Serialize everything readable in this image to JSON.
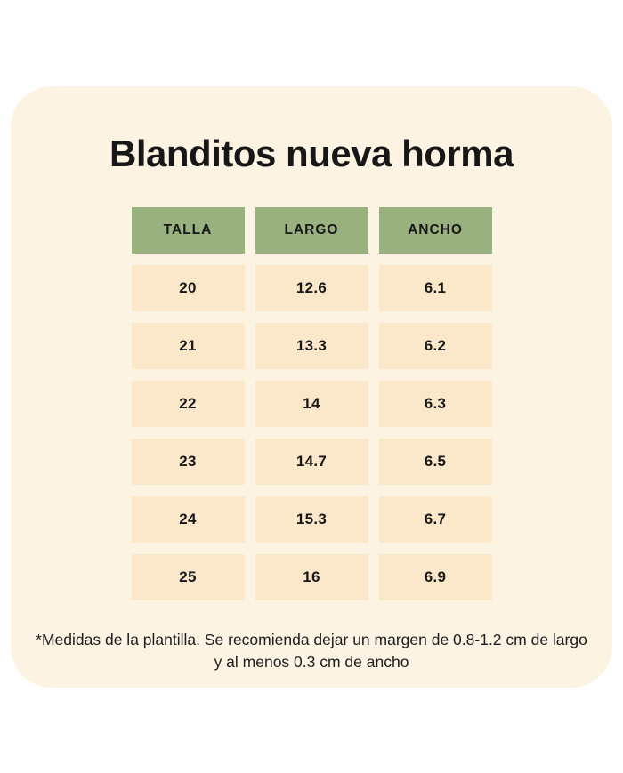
{
  "title": "Blanditos nueva horma",
  "table": {
    "headers": [
      "TALLA",
      "LARGO",
      "ANCHO"
    ],
    "rows": [
      [
        "20",
        "12.6",
        "6.1"
      ],
      [
        "21",
        "13.3",
        "6.2"
      ],
      [
        "22",
        "14",
        "6.3"
      ],
      [
        "23",
        "14.7",
        "6.5"
      ],
      [
        "24",
        "15.3",
        "6.7"
      ],
      [
        "25",
        "16",
        "6.9"
      ]
    ]
  },
  "footnote": "*Medidas de la plantilla. Se recomienda dejar un margen de 0.8-1.2 cm de largo y al menos 0.3 cm de ancho",
  "colors": {
    "page_background": "#ffffff",
    "card_background": "#fdf3e3",
    "header_cell": "#99b17e",
    "data_cell": "#fbe8ca",
    "text": "#171717"
  },
  "chart_data": {
    "type": "table",
    "title": "Blanditos nueva horma",
    "columns": [
      "TALLA",
      "LARGO",
      "ANCHO"
    ],
    "rows": [
      [
        20,
        12.6,
        6.1
      ],
      [
        21,
        13.3,
        6.2
      ],
      [
        22,
        14,
        6.3
      ],
      [
        23,
        14.7,
        6.5
      ],
      [
        24,
        15.3,
        6.7
      ],
      [
        25,
        16,
        6.9
      ]
    ],
    "units_note": "*Medidas de la plantilla. Se recomienda dejar un margen de 0.8-1.2 cm de largo y al menos 0.3 cm de ancho",
    "layout": "header row green, data cells peach, centered on cream rounded card"
  }
}
